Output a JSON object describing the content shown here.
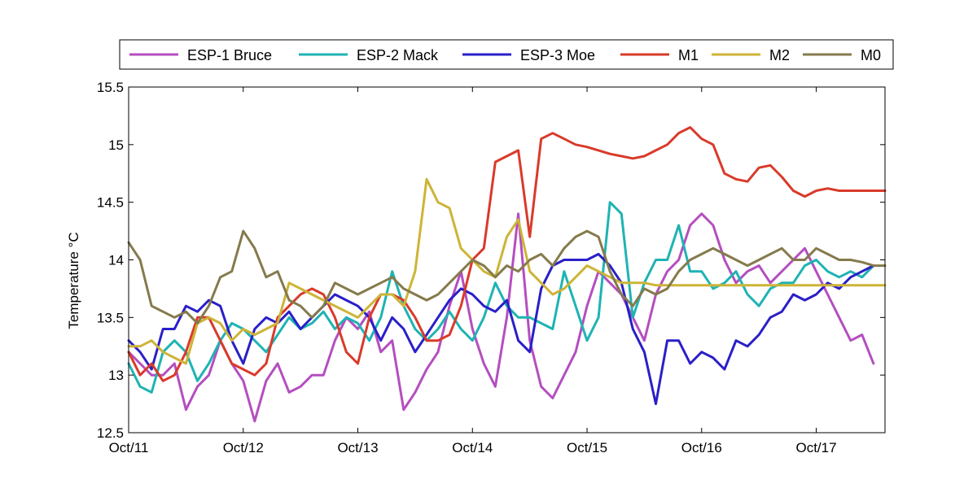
{
  "chart_data": {
    "type": "line",
    "title": "",
    "xlabel": "",
    "ylabel": "Temperature °C",
    "xlim": [
      0,
      6.6
    ],
    "ylim": [
      12.5,
      15.5
    ],
    "x_ticks": [
      0,
      1,
      2,
      3,
      4,
      5,
      6
    ],
    "x_tick_labels": [
      "Oct/11",
      "Oct/12",
      "Oct/13",
      "Oct/14",
      "Oct/15",
      "Oct/16",
      "Oct/17"
    ],
    "y_ticks": [
      12.5,
      13,
      13.5,
      14,
      14.5,
      15,
      15.5
    ],
    "y_tick_labels": [
      "12.5",
      "13",
      "13.5",
      "14",
      "14.5",
      "15",
      "15.5"
    ],
    "legend_position": "top",
    "series": [
      {
        "name": "ESP-1 Bruce",
        "color": "#b44ec0",
        "x": [
          0,
          0.1,
          0.2,
          0.3,
          0.4,
          0.5,
          0.6,
          0.7,
          0.8,
          0.9,
          1.0,
          1.1,
          1.2,
          1.3,
          1.4,
          1.5,
          1.6,
          1.7,
          1.8,
          1.9,
          2.0,
          2.1,
          2.2,
          2.3,
          2.4,
          2.5,
          2.6,
          2.7,
          2.8,
          2.9,
          3.0,
          3.1,
          3.2,
          3.3,
          3.4,
          3.5,
          3.6,
          3.7,
          3.8,
          3.9,
          4.0,
          4.1,
          4.2,
          4.3,
          4.4,
          4.5,
          4.6,
          4.7,
          4.8,
          4.9,
          5.0,
          5.1,
          5.2,
          5.3,
          5.4,
          5.5,
          5.6,
          5.7,
          5.8,
          5.9,
          6.0,
          6.1,
          6.2,
          6.3,
          6.4,
          6.5
        ],
        "values": [
          13.2,
          13.1,
          13.0,
          13.0,
          13.1,
          12.7,
          12.9,
          13.0,
          13.3,
          13.1,
          12.95,
          12.6,
          12.95,
          13.1,
          12.85,
          12.9,
          13.0,
          13.0,
          13.3,
          13.5,
          13.4,
          13.55,
          13.2,
          13.3,
          12.7,
          12.85,
          13.05,
          13.2,
          13.6,
          13.9,
          13.4,
          13.1,
          12.9,
          13.5,
          14.4,
          13.3,
          12.9,
          12.8,
          13.0,
          13.2,
          13.6,
          13.9,
          13.8,
          13.7,
          13.5,
          13.3,
          13.7,
          13.9,
          14.0,
          14.3,
          14.4,
          14.3,
          14.0,
          13.8,
          13.9,
          13.95,
          13.8,
          13.9,
          14.0,
          14.1,
          13.9,
          13.7,
          13.5,
          13.3,
          13.35,
          13.1
        ]
      },
      {
        "name": "ESP-2 Mack",
        "color": "#1fb3b3",
        "x": [
          0,
          0.1,
          0.2,
          0.3,
          0.4,
          0.5,
          0.6,
          0.7,
          0.8,
          0.9,
          1.0,
          1.1,
          1.2,
          1.3,
          1.4,
          1.5,
          1.6,
          1.7,
          1.8,
          1.9,
          2.0,
          2.1,
          2.2,
          2.3,
          2.4,
          2.5,
          2.6,
          2.7,
          2.8,
          2.9,
          3.0,
          3.1,
          3.2,
          3.3,
          3.4,
          3.5,
          3.6,
          3.7,
          3.8,
          3.9,
          4.0,
          4.1,
          4.2,
          4.3,
          4.4,
          4.5,
          4.6,
          4.7,
          4.8,
          4.9,
          5.0,
          5.1,
          5.2,
          5.3,
          5.4,
          5.5,
          5.6,
          5.7,
          5.8,
          5.9,
          6.0,
          6.1,
          6.2,
          6.3,
          6.4,
          6.5
        ],
        "values": [
          13.1,
          12.9,
          12.85,
          13.2,
          13.3,
          13.2,
          12.95,
          13.1,
          13.3,
          13.45,
          13.4,
          13.3,
          13.2,
          13.35,
          13.5,
          13.4,
          13.45,
          13.55,
          13.4,
          13.5,
          13.45,
          13.3,
          13.5,
          13.9,
          13.6,
          13.4,
          13.3,
          13.4,
          13.55,
          13.4,
          13.3,
          13.5,
          13.8,
          13.6,
          13.5,
          13.5,
          13.45,
          13.4,
          13.9,
          13.6,
          13.3,
          13.5,
          14.5,
          14.4,
          13.5,
          13.8,
          14.0,
          14.0,
          14.3,
          13.9,
          13.9,
          13.75,
          13.8,
          13.9,
          13.7,
          13.6,
          13.75,
          13.8,
          13.8,
          13.95,
          14.0,
          13.9,
          13.85,
          13.9,
          13.85,
          13.95
        ]
      },
      {
        "name": "ESP-3 Moe",
        "color": "#2a1fc8",
        "x": [
          0,
          0.1,
          0.2,
          0.3,
          0.4,
          0.5,
          0.6,
          0.7,
          0.8,
          0.9,
          1.0,
          1.1,
          1.2,
          1.3,
          1.4,
          1.5,
          1.6,
          1.7,
          1.8,
          1.9,
          2.0,
          2.1,
          2.2,
          2.3,
          2.4,
          2.5,
          2.6,
          2.7,
          2.8,
          2.9,
          3.0,
          3.1,
          3.2,
          3.3,
          3.4,
          3.5,
          3.6,
          3.7,
          3.8,
          3.9,
          4.0,
          4.1,
          4.2,
          4.3,
          4.4,
          4.5,
          4.6,
          4.7,
          4.8,
          4.9,
          5.0,
          5.1,
          5.2,
          5.3,
          5.4,
          5.5,
          5.6,
          5.7,
          5.8,
          5.9,
          6.0,
          6.1,
          6.2,
          6.3,
          6.4,
          6.5
        ],
        "values": [
          13.3,
          13.2,
          13.05,
          13.4,
          13.4,
          13.6,
          13.55,
          13.65,
          13.6,
          13.3,
          13.1,
          13.4,
          13.5,
          13.45,
          13.55,
          13.4,
          13.5,
          13.6,
          13.7,
          13.65,
          13.6,
          13.5,
          13.3,
          13.5,
          13.4,
          13.2,
          13.35,
          13.5,
          13.65,
          13.75,
          13.7,
          13.6,
          13.55,
          13.65,
          13.3,
          13.2,
          13.75,
          13.95,
          14.0,
          14.0,
          14.0,
          14.05,
          13.95,
          13.8,
          13.4,
          13.2,
          12.75,
          13.3,
          13.3,
          13.1,
          13.2,
          13.15,
          13.05,
          13.3,
          13.25,
          13.35,
          13.5,
          13.55,
          13.7,
          13.65,
          13.7,
          13.8,
          13.75,
          13.85,
          13.9,
          13.95
        ]
      },
      {
        "name": "M1",
        "color": "#d93a2a",
        "x": [
          0,
          0.1,
          0.2,
          0.3,
          0.4,
          0.5,
          0.6,
          0.7,
          0.8,
          0.9,
          1.0,
          1.1,
          1.2,
          1.3,
          1.4,
          1.5,
          1.6,
          1.7,
          1.8,
          1.9,
          2.0,
          2.1,
          2.2,
          2.3,
          2.4,
          2.5,
          2.6,
          2.7,
          2.8,
          2.9,
          3.0,
          3.1,
          3.2,
          3.3,
          3.4,
          3.5,
          3.6,
          3.7,
          3.8,
          3.9,
          4.0,
          4.1,
          4.2,
          4.3,
          4.4,
          4.5,
          4.6,
          4.7,
          4.8,
          4.9,
          5.0,
          5.1,
          5.2,
          5.3,
          5.4,
          5.5,
          5.6,
          5.7,
          5.8,
          5.9,
          6.0,
          6.1,
          6.2,
          6.3,
          6.4,
          6.5,
          6.6
        ],
        "values": [
          13.2,
          13.0,
          13.1,
          12.95,
          13.0,
          13.2,
          13.5,
          13.5,
          13.3,
          13.1,
          13.05,
          13.0,
          13.1,
          13.5,
          13.6,
          13.7,
          13.75,
          13.7,
          13.5,
          13.2,
          13.1,
          13.5,
          13.7,
          13.7,
          13.65,
          13.5,
          13.3,
          13.3,
          13.35,
          13.6,
          14.0,
          14.1,
          14.85,
          14.9,
          14.95,
          14.2,
          15.05,
          15.1,
          15.05,
          15.0,
          14.98,
          14.95,
          14.92,
          14.9,
          14.88,
          14.9,
          14.95,
          15.0,
          15.1,
          15.15,
          15.05,
          15.0,
          14.75,
          14.7,
          14.68,
          14.8,
          14.82,
          14.72,
          14.6,
          14.55,
          14.6,
          14.62,
          14.6,
          14.6,
          14.6,
          14.6,
          14.6
        ]
      },
      {
        "name": "M2",
        "color": "#cdb437",
        "x": [
          0,
          0.1,
          0.2,
          0.3,
          0.4,
          0.5,
          0.6,
          0.7,
          0.8,
          0.9,
          1.0,
          1.1,
          1.2,
          1.3,
          1.4,
          1.5,
          1.6,
          1.7,
          1.8,
          1.9,
          2.0,
          2.1,
          2.2,
          2.3,
          2.4,
          2.5,
          2.6,
          2.7,
          2.8,
          2.9,
          3.0,
          3.1,
          3.2,
          3.3,
          3.4,
          3.5,
          3.6,
          3.7,
          3.8,
          3.9,
          4.0,
          4.1,
          4.2,
          4.3,
          4.4,
          4.5,
          4.6,
          4.7,
          4.8,
          4.9,
          5.0,
          5.1,
          5.2,
          5.3,
          5.4,
          5.5,
          5.6,
          5.7,
          5.8,
          5.9,
          6.0,
          6.1,
          6.2,
          6.3,
          6.4,
          6.5,
          6.6
        ],
        "values": [
          13.25,
          13.25,
          13.3,
          13.2,
          13.15,
          13.1,
          13.45,
          13.5,
          13.45,
          13.3,
          13.4,
          13.35,
          13.4,
          13.45,
          13.8,
          13.75,
          13.7,
          13.65,
          13.6,
          13.55,
          13.5,
          13.6,
          13.7,
          13.7,
          13.6,
          13.9,
          14.7,
          14.5,
          14.45,
          14.1,
          14.0,
          13.9,
          13.85,
          14.2,
          14.35,
          13.9,
          13.8,
          13.7,
          13.75,
          13.85,
          13.95,
          13.9,
          13.85,
          13.8,
          13.8,
          13.8,
          13.78,
          13.78,
          13.78,
          13.78,
          13.78,
          13.78,
          13.78,
          13.78,
          13.78,
          13.78,
          13.78,
          13.78,
          13.78,
          13.78,
          13.78,
          13.78,
          13.78,
          13.78,
          13.78,
          13.78,
          13.78
        ]
      },
      {
        "name": "M0",
        "color": "#857a4c",
        "x": [
          0,
          0.1,
          0.2,
          0.3,
          0.4,
          0.5,
          0.6,
          0.7,
          0.8,
          0.9,
          1.0,
          1.1,
          1.2,
          1.3,
          1.4,
          1.5,
          1.6,
          1.7,
          1.8,
          1.9,
          2.0,
          2.1,
          2.2,
          2.3,
          2.4,
          2.5,
          2.6,
          2.7,
          2.8,
          2.9,
          3.0,
          3.1,
          3.2,
          3.3,
          3.4,
          3.5,
          3.6,
          3.7,
          3.8,
          3.9,
          4.0,
          4.1,
          4.2,
          4.3,
          4.4,
          4.5,
          4.6,
          4.7,
          4.8,
          4.9,
          5.0,
          5.1,
          5.2,
          5.3,
          5.4,
          5.5,
          5.6,
          5.7,
          5.8,
          5.9,
          6.0,
          6.1,
          6.2,
          6.3,
          6.4,
          6.5,
          6.6
        ],
        "values": [
          14.15,
          14.0,
          13.6,
          13.55,
          13.5,
          13.55,
          13.45,
          13.6,
          13.85,
          13.9,
          14.25,
          14.1,
          13.85,
          13.9,
          13.65,
          13.6,
          13.5,
          13.6,
          13.8,
          13.75,
          13.7,
          13.75,
          13.8,
          13.85,
          13.75,
          13.7,
          13.65,
          13.7,
          13.8,
          13.9,
          14.0,
          13.95,
          13.85,
          13.95,
          13.9,
          14.0,
          14.05,
          13.95,
          14.1,
          14.2,
          14.25,
          14.2,
          13.9,
          13.7,
          13.6,
          13.75,
          13.7,
          13.75,
          13.9,
          14.0,
          14.05,
          14.1,
          14.05,
          14.0,
          13.95,
          14.0,
          14.05,
          14.1,
          14.0,
          14.0,
          14.1,
          14.05,
          14.0,
          14.0,
          13.98,
          13.95,
          13.95
        ]
      }
    ]
  }
}
